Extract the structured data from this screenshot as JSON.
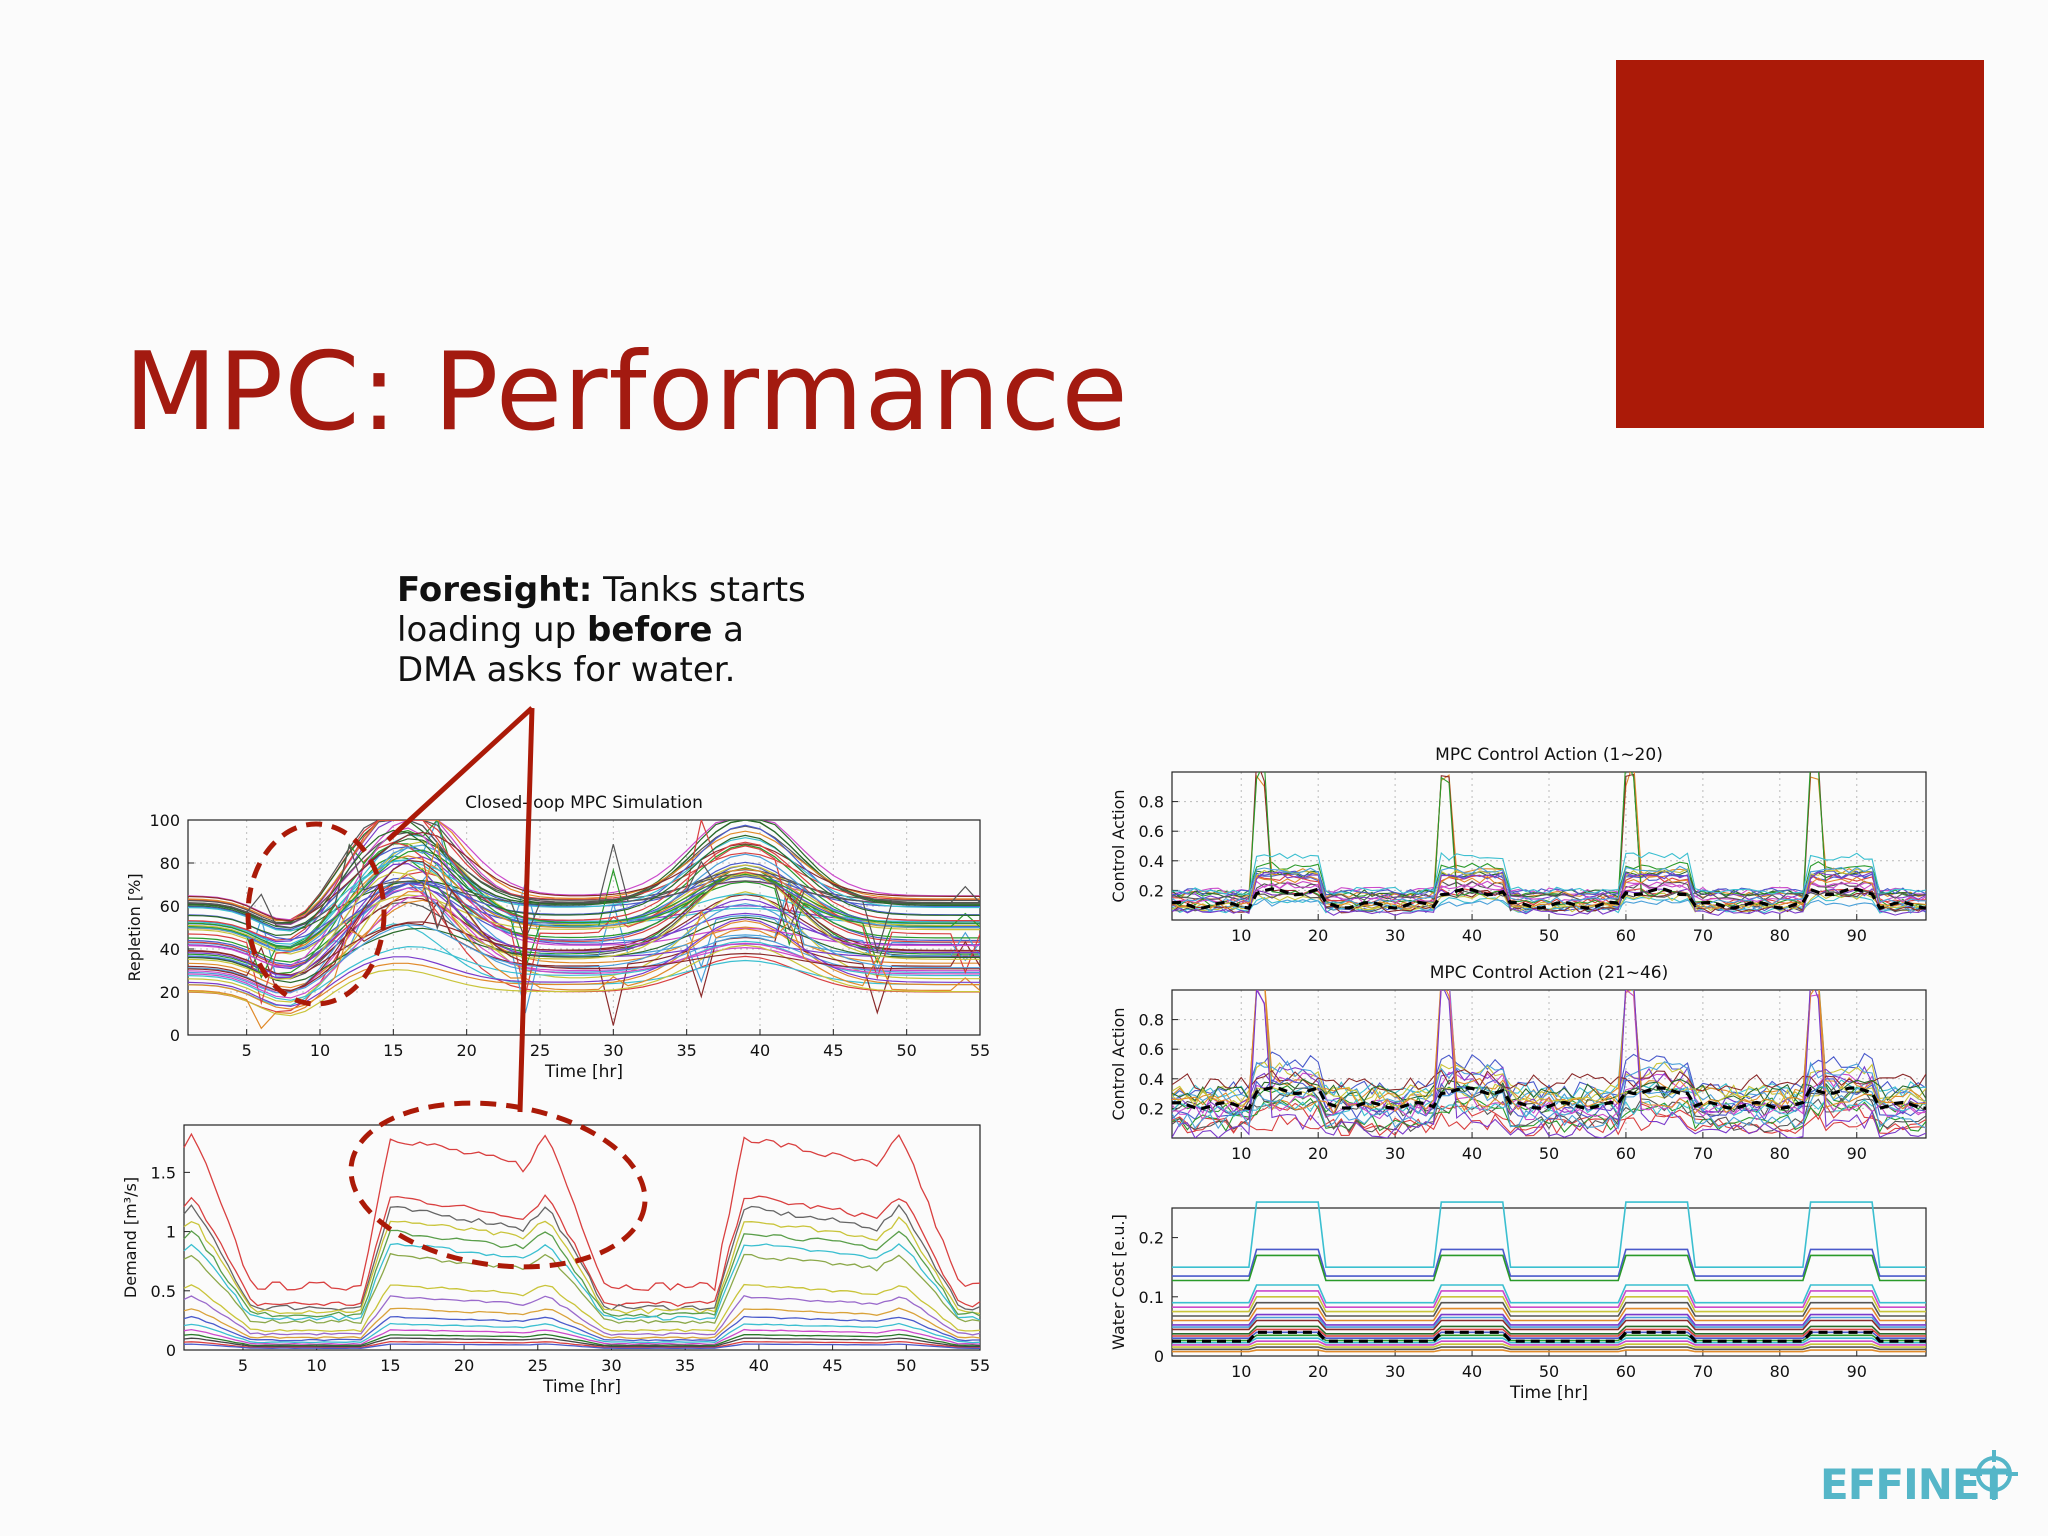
{
  "slide": {
    "title": "MPC: Performance",
    "accent_color": "#ab1a08",
    "annotation": {
      "bold1": "Foresight:",
      "text1": " Tanks starts loading up ",
      "bold2": "before",
      "text2": " a DMA asks for water."
    },
    "logo_text": "EFFINET",
    "logo_icon": "crosshair-drop-icon"
  },
  "chart_data": [
    {
      "id": "repletion",
      "type": "line",
      "title": "Closed-loop MPC Simulation",
      "xlabel": "Time [hr]",
      "ylabel": "Repletion [%]",
      "xlim": [
        1,
        55
      ],
      "ylim": [
        0,
        100
      ],
      "xticks": [
        5,
        10,
        15,
        20,
        25,
        30,
        35,
        40,
        45,
        50,
        55
      ],
      "yticks": [
        0,
        20,
        40,
        60,
        80,
        100
      ],
      "grid": true,
      "series_count": 60
    },
    {
      "id": "demand",
      "type": "line",
      "title": "",
      "xlabel": "Time [hr]",
      "ylabel": "Demand [m³/s]",
      "xlim": [
        1,
        55
      ],
      "ylim": [
        0,
        1.9
      ],
      "xticks": [
        5,
        10,
        15,
        20,
        25,
        30,
        35,
        40,
        45,
        50,
        55
      ],
      "yticks": [
        0,
        0.5,
        1,
        1.5
      ],
      "ytick_labels": [
        "0",
        "0.5",
        "1",
        "1.5"
      ],
      "grid": false,
      "series": [
        {
          "peak": 1.8,
          "color": "#d94040"
        },
        {
          "peak": 1.3,
          "color": "#d94040"
        },
        {
          "peak": 1.2,
          "color": "#666666"
        },
        {
          "peak": 1.1,
          "color": "#c9c43a"
        },
        {
          "peak": 1.0,
          "color": "#5a9e4a"
        },
        {
          "peak": 0.9,
          "color": "#3bbfd0"
        },
        {
          "peak": 0.8,
          "color": "#8ba84a"
        },
        {
          "peak": 0.55,
          "color": "#c9c43a"
        },
        {
          "peak": 0.45,
          "color": "#9a6acb"
        },
        {
          "peak": 0.35,
          "color": "#d9a23a"
        },
        {
          "peak": 0.28,
          "color": "#4a5acb"
        },
        {
          "peak": 0.22,
          "color": "#3bbfd0"
        },
        {
          "peak": 0.17,
          "color": "#cb4acb"
        },
        {
          "peak": 0.13,
          "color": "#2a7a2a"
        },
        {
          "peak": 0.1,
          "color": "#444444"
        },
        {
          "peak": 0.07,
          "color": "#d94040"
        },
        {
          "peak": 0.05,
          "color": "#4a5acb"
        }
      ]
    },
    {
      "id": "control-1",
      "type": "line",
      "title": "MPC Control Action (1~20)",
      "xlabel": "",
      "ylabel": "Control Action",
      "xlim": [
        1,
        99
      ],
      "ylim": [
        0,
        1
      ],
      "xticks": [
        10,
        20,
        30,
        40,
        50,
        60,
        70,
        80,
        90
      ],
      "yticks": [
        0.2,
        0.4,
        0.6,
        0.8
      ],
      "grid": true,
      "mean_series": "dashed black"
    },
    {
      "id": "control-2",
      "type": "line",
      "title": "MPC Control Action (21~46)",
      "xlabel": "",
      "ylabel": "Control Action",
      "xlim": [
        1,
        99
      ],
      "ylim": [
        0,
        1
      ],
      "xticks": [
        10,
        20,
        30,
        40,
        50,
        60,
        70,
        80,
        90
      ],
      "yticks": [
        0.2,
        0.4,
        0.6,
        0.8
      ],
      "grid": true,
      "mean_series": "dashed black"
    },
    {
      "id": "water-cost",
      "type": "line",
      "title": "",
      "xlabel": "Time [hr]",
      "ylabel": "Water Cost [e.u.]",
      "xlim": [
        1,
        99
      ],
      "ylim": [
        0,
        0.25
      ],
      "xticks": [
        10,
        20,
        30,
        40,
        50,
        60,
        70,
        80,
        90
      ],
      "yticks": [
        0,
        0.1,
        0.2
      ],
      "grid": false,
      "mean_series": "dashed black"
    }
  ]
}
